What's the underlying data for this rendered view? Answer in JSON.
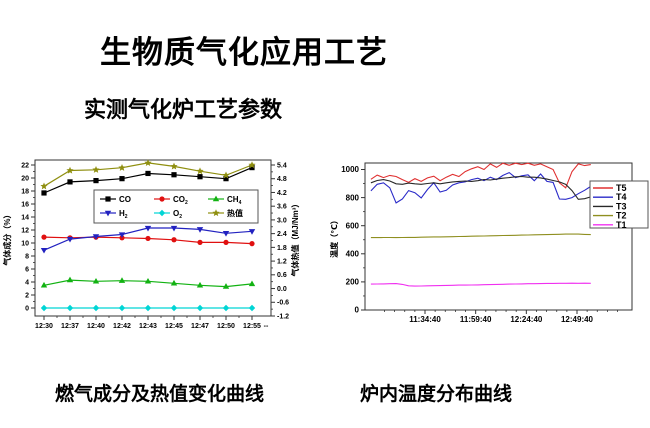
{
  "slide": {
    "title": "生物质气化应用工艺",
    "subtitle": "实测气化炉工艺参数",
    "captions": {
      "gas": "燃气成分及热值变化曲线",
      "temp": "炉内温度分布曲线"
    }
  },
  "chart_data": [
    {
      "id": "gas-composition",
      "type": "line",
      "title": "燃气成分及热值变化曲线",
      "categories": [
        "12:30",
        "12:37",
        "12:40",
        "12:42",
        "12:43",
        "12:45",
        "12:47",
        "12:50",
        "12:55"
      ],
      "x_tail_label": "--",
      "ylabel_left": "气体成分（%）",
      "ylabel_right": "气体热值（MJ/Nm³）",
      "ylim_left": [
        0,
        22
      ],
      "ytick_step_left": 2,
      "ylim_right": [
        -1.2,
        5.4
      ],
      "ytick_step_right": 0.6,
      "legend_position": "inside-top-center",
      "legend_columns": 3,
      "series": [
        {
          "label": "CO",
          "sub": "",
          "color": "#000000",
          "marker": "square",
          "axis": "left",
          "values": [
            17.7,
            19.4,
            19.6,
            19.9,
            20.7,
            20.5,
            20.2,
            19.9,
            21.6
          ]
        },
        {
          "label": "CO",
          "sub": "2",
          "color": "#e01010",
          "marker": "circle",
          "axis": "left",
          "values": [
            10.9,
            10.8,
            10.9,
            10.8,
            10.7,
            10.5,
            10.1,
            10.1,
            9.9
          ]
        },
        {
          "label": "CH",
          "sub": "4",
          "color": "#12b212",
          "marker": "triangle-up",
          "axis": "left",
          "values": [
            3.5,
            4.3,
            4.1,
            4.2,
            4.1,
            3.8,
            3.5,
            3.3,
            3.7
          ]
        },
        {
          "label": "H",
          "sub": "2",
          "color": "#2222c0",
          "marker": "triangle-down",
          "axis": "left",
          "values": [
            8.9,
            10.6,
            11.0,
            11.3,
            12.3,
            12.3,
            12.1,
            11.5,
            11.8
          ]
        },
        {
          "label": "O",
          "sub": "2",
          "color": "#00d5d5",
          "marker": "diamond",
          "axis": "left",
          "values": [
            0,
            0,
            0,
            0,
            0,
            0,
            0,
            0,
            0
          ]
        },
        {
          "label": "热值",
          "sub": "",
          "color": "#8f8f10",
          "marker": "star",
          "axis": "right",
          "values": [
            4.47,
            5.16,
            5.19,
            5.28,
            5.49,
            5.34,
            5.13,
            4.95,
            5.4
          ]
        }
      ]
    },
    {
      "id": "furnace-temperature",
      "type": "line",
      "title": "炉内温度分布曲线",
      "ylabel": "温度（℃）",
      "ylim": [
        0,
        1046
      ],
      "yticks": [
        0,
        200,
        400,
        600,
        800,
        1000
      ],
      "xticks": [
        {
          "minute": 34.67,
          "label": "11:34:40"
        },
        {
          "minute": 59.67,
          "label": "11:59:40"
        },
        {
          "minute": 84.67,
          "label": "12:24:40"
        },
        {
          "minute": 109.67,
          "label": "12:49:40"
        }
      ],
      "x_start_minute": 8,
      "x_step_minute": 3.1,
      "legend_position": "right",
      "series": [
        {
          "label": "T5",
          "color": "#e03030",
          "values": [
            930,
            960,
            942,
            958,
            950,
            928,
            908,
            935,
            915,
            940,
            952,
            920,
            945,
            965,
            950,
            985,
            1005,
            1020,
            1000,
            1040,
            1015,
            1045,
            1030,
            1045,
            1035,
            1045,
            1030,
            1040,
            1020,
            1000,
            905,
            870,
            985,
            1040,
            1028,
            1035
          ]
        },
        {
          "label": "T4",
          "color": "#2a2ac8",
          "values": [
            848,
            895,
            905,
            870,
            762,
            790,
            850,
            835,
            798,
            858,
            905,
            840,
            852,
            890,
            905,
            912,
            928,
            938,
            920,
            945,
            928,
            958,
            978,
            942,
            955,
            962,
            920,
            968,
            915,
            908,
            790,
            788,
            800,
            828,
            852,
            880
          ]
        },
        {
          "label": "T3",
          "color": "#282828",
          "values": [
            905,
            922,
            928,
            918,
            898,
            895,
            903,
            898,
            895,
            900,
            905,
            898,
            905,
            912,
            915,
            918,
            915,
            920,
            928,
            925,
            932,
            938,
            942,
            948,
            950,
            945,
            945,
            940,
            932,
            922,
            912,
            895,
            850,
            788,
            792,
            805
          ]
        },
        {
          "label": "T2",
          "color": "#8f8f20",
          "values": [
            515,
            515,
            516,
            516,
            515,
            516,
            517,
            517,
            518,
            519,
            520,
            520,
            521,
            522,
            523,
            524,
            525,
            526,
            527,
            528,
            529,
            530,
            531,
            532,
            533,
            534,
            535,
            536,
            537,
            538,
            539,
            540,
            541,
            540,
            538,
            537
          ]
        },
        {
          "label": "T1",
          "color": "#f030f0",
          "values": [
            184,
            185,
            186,
            187,
            188,
            182,
            172,
            170,
            171,
            172,
            173,
            174,
            175,
            176,
            177,
            177,
            178,
            179,
            180,
            181,
            182,
            183,
            184,
            185,
            186,
            187,
            187,
            188,
            189,
            189,
            190,
            190,
            191,
            190,
            191,
            190
          ]
        }
      ]
    }
  ]
}
